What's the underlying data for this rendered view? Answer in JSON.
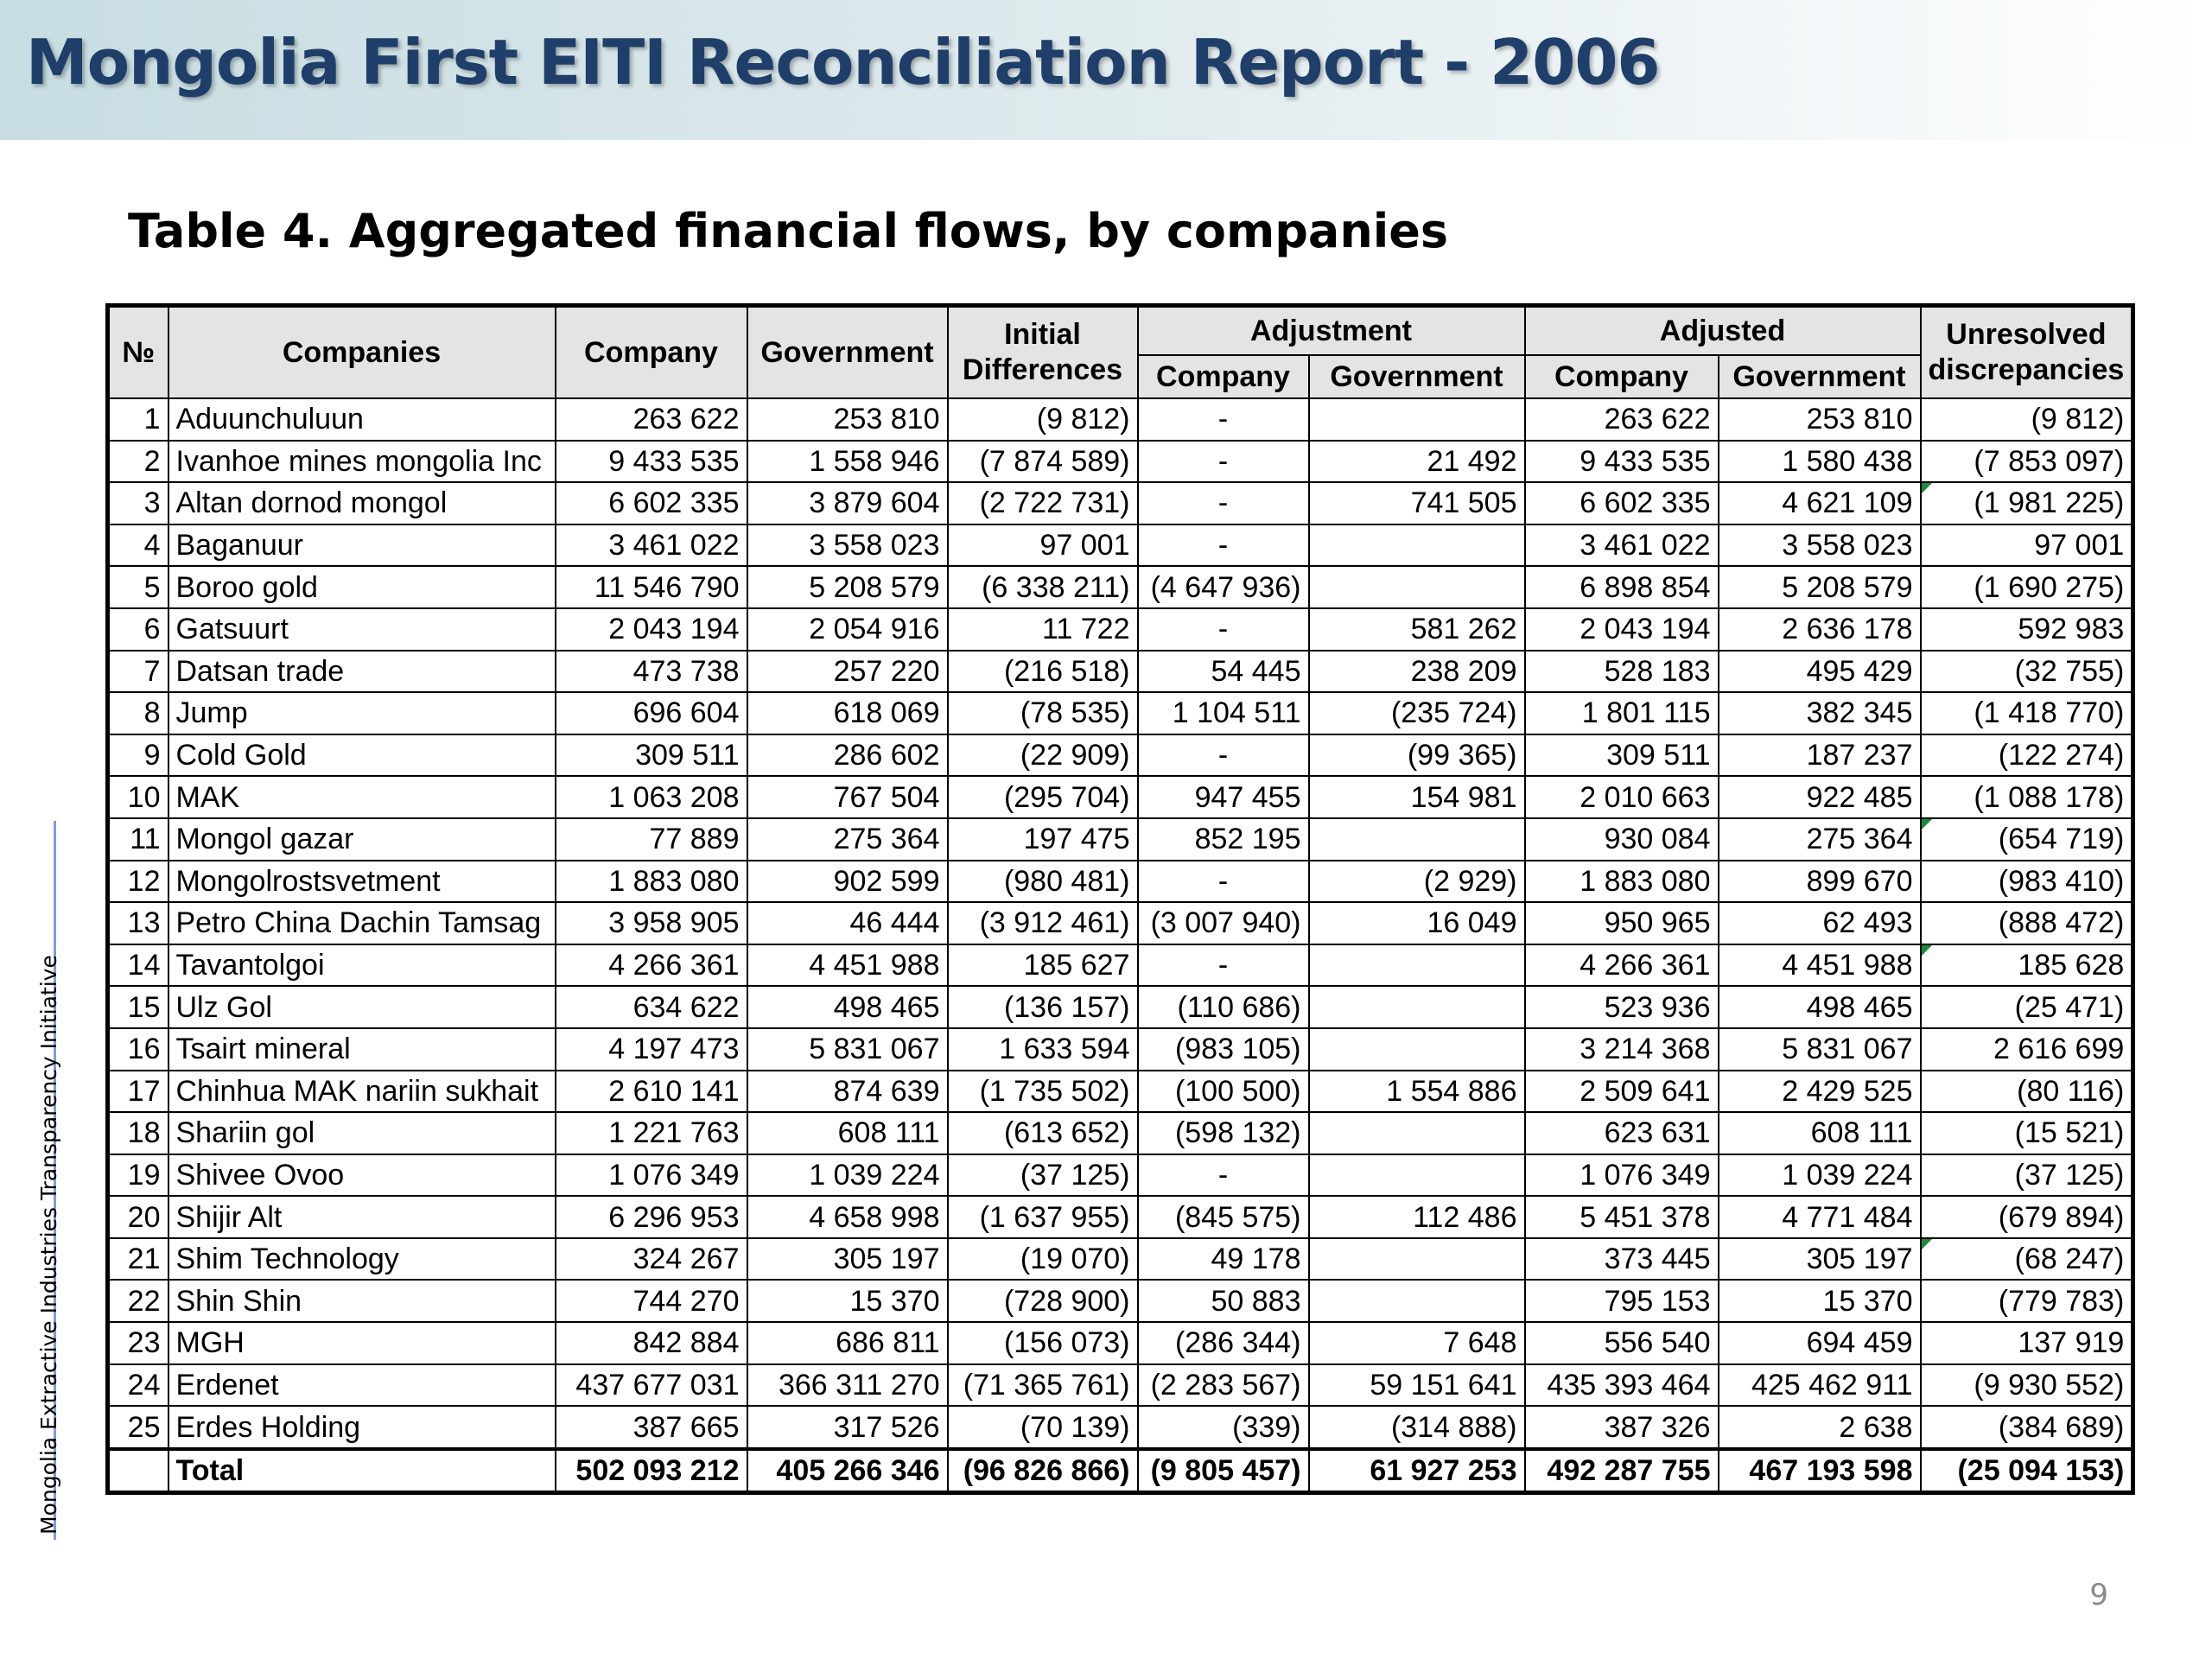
{
  "slide": {
    "title": "Mongolia First EITI Reconciliation Report - 2006",
    "caption": "Table 4. Aggregated financial flows, by companies",
    "side_label": "Mongolia Extractive Industries Transparency Initiative",
    "page_number": "9"
  },
  "table": {
    "headers": {
      "no": "№",
      "companies": "Companies",
      "company": "Company",
      "government": "Government",
      "initial_line1": "Initial",
      "initial_line2": "Differences",
      "adjustment": "Adjustment",
      "adjustment_company": "Company",
      "adjustment_government": "Government",
      "adjusted": "Adjusted",
      "adjusted_company": "Company",
      "adjusted_government": "Government",
      "unresolved_line1": "Unresolved",
      "unresolved_line2": "discrepancies"
    },
    "rows": [
      [
        "1",
        "Aduunchuluun",
        "263 622",
        "253 810",
        "(9 812)",
        "-",
        "",
        "263 622",
        "253 810",
        "(9 812)"
      ],
      [
        "2",
        "Ivanhoe mines mongolia Inc",
        "9 433 535",
        "1 558 946",
        "(7 874 589)",
        "-",
        "21 492",
        "9 433 535",
        "1 580 438",
        "(7 853 097)"
      ],
      [
        "3",
        "Altan dornod mongol",
        "6 602 335",
        "3 879 604",
        "(2 722 731)",
        "-",
        "741 505",
        "6 602 335",
        "4 621 109",
        "(1 981 225)"
      ],
      [
        "4",
        "Baganuur",
        "3 461 022",
        "3 558 023",
        "97 001",
        "-",
        "",
        "3 461 022",
        "3 558 023",
        "97 001"
      ],
      [
        "5",
        "Boroo gold",
        "11 546 790",
        "5 208 579",
        "(6 338 211)",
        "(4 647 936)",
        "",
        "6 898 854",
        "5 208 579",
        "(1 690 275)"
      ],
      [
        "6",
        "Gatsuurt",
        "2 043 194",
        "2 054 916",
        "11 722",
        "-",
        "581 262",
        "2 043 194",
        "2 636 178",
        "592 983"
      ],
      [
        "7",
        "Datsan trade",
        "473 738",
        "257 220",
        "(216 518)",
        "54 445",
        "238 209",
        "528 183",
        "495 429",
        "(32 755)"
      ],
      [
        "8",
        "Jump",
        "696 604",
        "618 069",
        "(78 535)",
        "1 104 511",
        "(235 724)",
        "1 801 115",
        "382 345",
        "(1 418 770)"
      ],
      [
        "9",
        "Cold Gold",
        "309 511",
        "286 602",
        "(22 909)",
        "-",
        "(99 365)",
        "309 511",
        "187 237",
        "(122 274)"
      ],
      [
        "10",
        "MAK",
        "1 063 208",
        "767 504",
        "(295 704)",
        "947 455",
        "154 981",
        "2 010 663",
        "922 485",
        "(1 088 178)"
      ],
      [
        "11",
        "Mongol gazar",
        "77 889",
        "275 364",
        "197 475",
        "852 195",
        "",
        "930 084",
        "275 364",
        "(654 719)"
      ],
      [
        "12",
        "Mongolrostsvetment",
        "1 883 080",
        "902 599",
        "(980 481)",
        "-",
        "(2 929)",
        "1 883 080",
        "899 670",
        "(983 410)"
      ],
      [
        "13",
        "Petro China Dachin Tamsag",
        "3 958 905",
        "46 444",
        "(3 912 461)",
        "(3 007 940)",
        "16 049",
        "950 965",
        "62 493",
        "(888 472)"
      ],
      [
        "14",
        "Tavantolgoi",
        "4 266 361",
        "4 451 988",
        "185 627",
        "-",
        "",
        "4 266 361",
        "4 451 988",
        "185 628"
      ],
      [
        "15",
        "Ulz Gol",
        "634 622",
        "498 465",
        "(136 157)",
        "(110 686)",
        "",
        "523 936",
        "498 465",
        "(25 471)"
      ],
      [
        "16",
        "Tsairt mineral",
        "4 197 473",
        "5 831 067",
        "1 633 594",
        "(983 105)",
        "",
        "3 214 368",
        "5 831 067",
        "2 616 699"
      ],
      [
        "17",
        "Chinhua MAK nariin sukhait",
        "2 610 141",
        "874 639",
        "(1 735 502)",
        "(100 500)",
        "1 554 886",
        "2 509 641",
        "2 429 525",
        "(80 116)"
      ],
      [
        "18",
        "Shariin gol",
        "1 221 763",
        "608 111",
        "(613 652)",
        "(598 132)",
        "",
        "623 631",
        "608 111",
        "(15 521)"
      ],
      [
        "19",
        "Shivee Ovoo",
        "1 076 349",
        "1 039 224",
        "(37 125)",
        "-",
        "",
        "1 076 349",
        "1 039 224",
        "(37 125)"
      ],
      [
        "20",
        "Shijir Alt",
        "6 296 953",
        "4 658 998",
        "(1 637 955)",
        "(845 575)",
        "112 486",
        "5 451 378",
        "4 771 484",
        "(679 894)"
      ],
      [
        "21",
        "Shim Technology",
        "324 267",
        "305 197",
        "(19 070)",
        "49 178",
        "",
        "373 445",
        "305 197",
        "(68 247)"
      ],
      [
        "22",
        "Shin Shin",
        "744 270",
        "15 370",
        "(728 900)",
        "50 883",
        "",
        "795 153",
        "15 370",
        "(779 783)"
      ],
      [
        "23",
        "MGH",
        "842 884",
        "686 811",
        "(156 073)",
        "(286 344)",
        "7 648",
        "556 540",
        "694 459",
        "137 919"
      ],
      [
        "24",
        "Erdenet",
        "437 677 031",
        "366 311 270",
        "(71 365 761)",
        "(2 283 567)",
        "59 151 641",
        "435 393 464",
        "425 462 911",
        "(9 930 552)"
      ],
      [
        "25",
        "Erdes Holding",
        "387 665",
        "317 526",
        "(70 139)",
        "(339)",
        "(314 888)",
        "387 326",
        "2 638",
        "(384 689)"
      ]
    ],
    "total": [
      "",
      "Total",
      "502 093 212",
      "405 266 346",
      "(96 826 866)",
      "(9 805 457)",
      "61 927 253",
      "492 287 755",
      "467 193 598",
      "(25 094 153)"
    ],
    "flagged_unresolved_rows": [
      3,
      11,
      14,
      21
    ]
  }
}
